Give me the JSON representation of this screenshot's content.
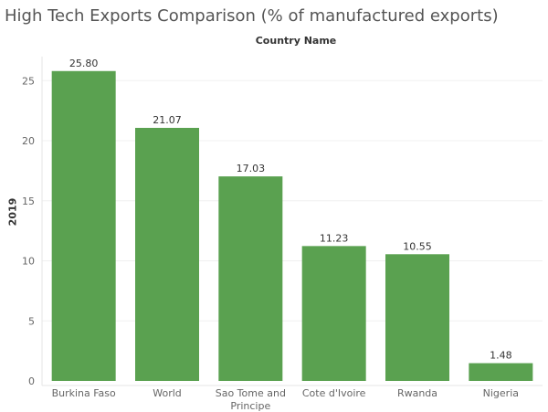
{
  "chart_data": {
    "type": "bar",
    "title": "High Tech Exports Comparison (% of manufactured exports)",
    "header": "Country Name",
    "ylabel": "2019",
    "xlabel": "",
    "ylim": [
      0,
      27
    ],
    "yticks": [
      0,
      5,
      10,
      15,
      20,
      25
    ],
    "categories": [
      "Burkina Faso",
      "World",
      "Sao Tome and Principe",
      "Cote d'Ivoire",
      "Rwanda",
      "Nigeria"
    ],
    "category_lines": [
      [
        "Burkina Faso"
      ],
      [
        "World"
      ],
      [
        "Sao Tome and",
        "Principe"
      ],
      [
        "Cote d'Ivoire"
      ],
      [
        "Rwanda"
      ],
      [
        "Nigeria"
      ]
    ],
    "values": [
      25.8,
      21.07,
      17.03,
      11.23,
      10.55,
      1.48
    ],
    "value_labels": [
      "25.80",
      "21.07",
      "17.03",
      "11.23",
      "10.55",
      "1.48"
    ],
    "grid": true,
    "legend": "none",
    "bar_color": "#5aa150",
    "axis_color": "#e6e6e6"
  }
}
